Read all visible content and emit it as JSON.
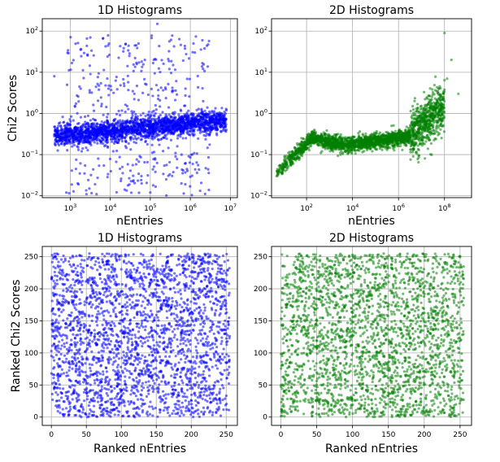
{
  "colors": {
    "blue": "#0000ff",
    "green": "#008000",
    "grid": "#b0b0b0"
  },
  "chart_data": [
    {
      "type": "scatter",
      "title": "1D Histograms",
      "xlabel": "nEntries",
      "ylabel": "Chi2 Scores",
      "xscale": "log",
      "yscale": "log",
      "xlim": [
        200,
        15000000
      ],
      "ylim": [
        0.009,
        200
      ],
      "xticks": [
        1000,
        10000,
        100000,
        1000000,
        10000000
      ],
      "xtick_labels": [
        "10^3",
        "10^4",
        "10^5",
        "10^6",
        "10^7"
      ],
      "yticks": [
        0.01,
        0.1,
        1,
        10,
        100
      ],
      "ytick_labels": [
        "10^-2",
        "10^-1",
        "10^0",
        "10^1",
        "10^2"
      ],
      "grid": true,
      "color": "#0000ff",
      "points": [
        [
          500,
          0.3
        ],
        [
          700,
          0.25
        ],
        [
          900,
          0.35
        ],
        [
          1000,
          0.3
        ],
        [
          1200,
          0.28
        ],
        [
          1500,
          0.32
        ],
        [
          2000,
          0.3
        ],
        [
          2500,
          0.4
        ],
        [
          3000,
          0.27
        ],
        [
          4000,
          0.35
        ],
        [
          5000,
          0.3
        ],
        [
          7000,
          0.38
        ],
        [
          10000,
          0.32
        ],
        [
          15000,
          0.4
        ],
        [
          20000,
          0.35
        ],
        [
          30000,
          0.45
        ],
        [
          50000,
          0.4
        ],
        [
          70000,
          0.5
        ],
        [
          100000,
          0.45
        ],
        [
          150000,
          0.55
        ],
        [
          200000,
          0.5
        ],
        [
          300000,
          0.6
        ],
        [
          500000,
          0.7
        ],
        [
          800000,
          0.8
        ],
        [
          1500000,
          0.9
        ],
        [
          3000000,
          1.1
        ],
        [
          8000000,
          1.2
        ],
        [
          400,
          8
        ],
        [
          150000,
          150
        ],
        [
          2000000,
          60
        ],
        [
          1200000,
          50
        ],
        [
          100000,
          0.012
        ],
        [
          600000,
          0.02
        ],
        [
          3000,
          0.015
        ],
        [
          30000,
          25
        ],
        [
          60000,
          0.03
        ],
        [
          300000,
          12
        ],
        [
          20000,
          0.05
        ],
        [
          5000,
          0.08
        ],
        [
          800,
          0.012
        ],
        [
          9000,
          4
        ],
        [
          40000,
          3
        ],
        [
          250000,
          0.025
        ]
      ]
    },
    {
      "type": "scatter",
      "title": "2D Histograms",
      "xlabel": "nEntries",
      "ylabel": "",
      "xscale": "log",
      "yscale": "log",
      "xlim": [
        3,
        1500000000
      ],
      "ylim": [
        0.009,
        200
      ],
      "xticks": [
        100,
        10000,
        1000000,
        100000000
      ],
      "xtick_labels": [
        "10^2",
        "10^4",
        "10^6",
        "10^8"
      ],
      "yticks": [
        0.01,
        0.1,
        1,
        10,
        100
      ],
      "ytick_labels": [
        "10^-2",
        "10^-1",
        "10^0",
        "10^1",
        "10^2"
      ],
      "grid": true,
      "color": "#008000",
      "points": [
        [
          5,
          0.03
        ],
        [
          8,
          0.05
        ],
        [
          12,
          0.06
        ],
        [
          20,
          0.08
        ],
        [
          40,
          0.12
        ],
        [
          80,
          0.15
        ],
        [
          150,
          0.2
        ],
        [
          300,
          0.22
        ],
        [
          700,
          0.18
        ],
        [
          1500,
          0.15
        ],
        [
          3000,
          0.14
        ],
        [
          8000,
          0.16
        ],
        [
          20000,
          0.18
        ],
        [
          60000,
          0.2
        ],
        [
          200000,
          0.22
        ],
        [
          600000,
          0.25
        ],
        [
          1500000,
          0.3
        ],
        [
          3000000,
          0.4
        ],
        [
          7000000,
          0.6
        ],
        [
          15000000,
          0.9
        ],
        [
          40000000,
          1.5
        ],
        [
          90000000,
          3
        ],
        [
          130000000,
          7
        ],
        [
          100000000,
          90
        ],
        [
          200000000,
          20
        ],
        [
          400000000,
          3
        ],
        [
          60,
          0.25
        ],
        [
          2000,
          0.3
        ],
        [
          500000,
          0.5
        ],
        [
          5000000,
          2
        ]
      ]
    },
    {
      "type": "scatter",
      "title": "1D Histograms",
      "xlabel": "Ranked nEntries",
      "ylabel": "Ranked Chi2 Scores",
      "xlim": [
        -13,
        266
      ],
      "ylim": [
        -13,
        266
      ],
      "xticks": [
        0,
        50,
        100,
        150,
        200,
        250
      ],
      "yticks": [
        0,
        50,
        100,
        150,
        200,
        250
      ],
      "grid": true,
      "color": "#0000ff",
      "x_range": [
        0,
        255
      ],
      "y_range": [
        0,
        255
      ],
      "point_count": 2600
    },
    {
      "type": "scatter",
      "title": "2D Histograms",
      "xlabel": "Ranked nEntries",
      "ylabel": "",
      "xlim": [
        -13,
        266
      ],
      "ylim": [
        -13,
        266
      ],
      "xticks": [
        0,
        50,
        100,
        150,
        200,
        250
      ],
      "yticks": [
        0,
        50,
        100,
        150,
        200,
        250
      ],
      "grid": true,
      "color": "#008000",
      "x_range": [
        0,
        255
      ],
      "y_range": [
        0,
        255
      ],
      "point_count": 2600
    }
  ]
}
